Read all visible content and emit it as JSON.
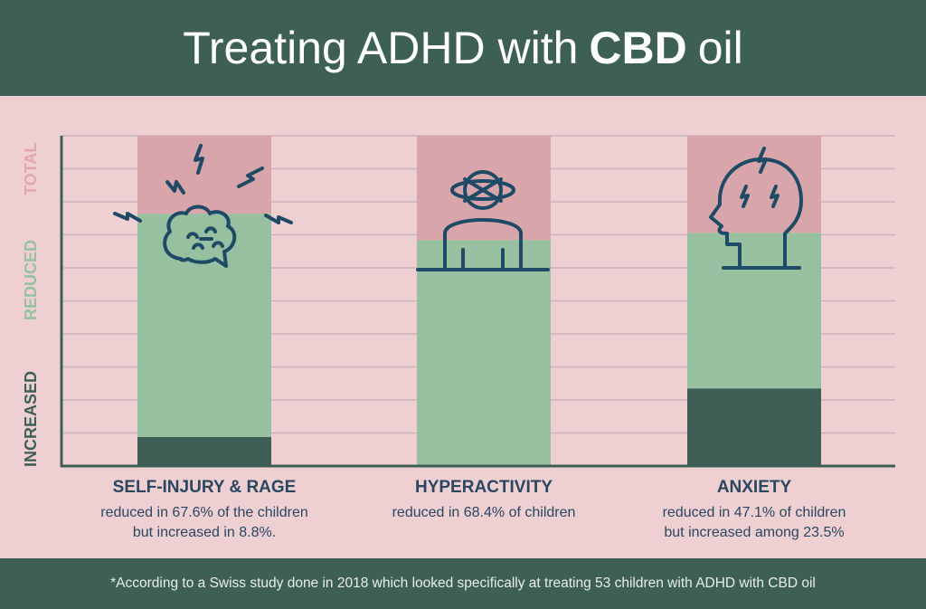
{
  "title": {
    "pre": "Treating ADHD with",
    "bold": "CBD",
    "post": "oil"
  },
  "footer": "*According to a Swiss study done in 2018 which looked specifically at treating 53 children with ADHD with CBD oil",
  "colors": {
    "header": "#3d5f56",
    "background": "#eed0d2",
    "increased": "#3d5f56",
    "reduced": "#97c0a0",
    "total": "#d8a6aa",
    "icon": "#1f4a66",
    "text": "#2b4660"
  },
  "chart_data": {
    "type": "bar",
    "stacked": true,
    "categories": [
      "SELF-INJURY & RAGE",
      "HYPERACTIVITY",
      "ANXIETY"
    ],
    "series": [
      {
        "name": "INCREASED",
        "values": [
          8.8,
          0,
          23.5
        ]
      },
      {
        "name": "REDUCED",
        "values": [
          67.6,
          68.4,
          47.1
        ]
      },
      {
        "name": "TOTAL",
        "values": [
          23.6,
          31.6,
          29.4
        ]
      }
    ],
    "ylim": [
      0,
      100
    ],
    "grid": true,
    "descriptions": [
      [
        "reduced in 67.6% of the children",
        "but increased in 8.8%."
      ],
      [
        "reduced in 68.4% of children"
      ],
      [
        "reduced in 47.1% of children",
        "but increased among 23.5%"
      ]
    ],
    "icons": [
      "brain-lightning-icon",
      "person-dizzy-icon",
      "head-lightning-icon"
    ]
  }
}
